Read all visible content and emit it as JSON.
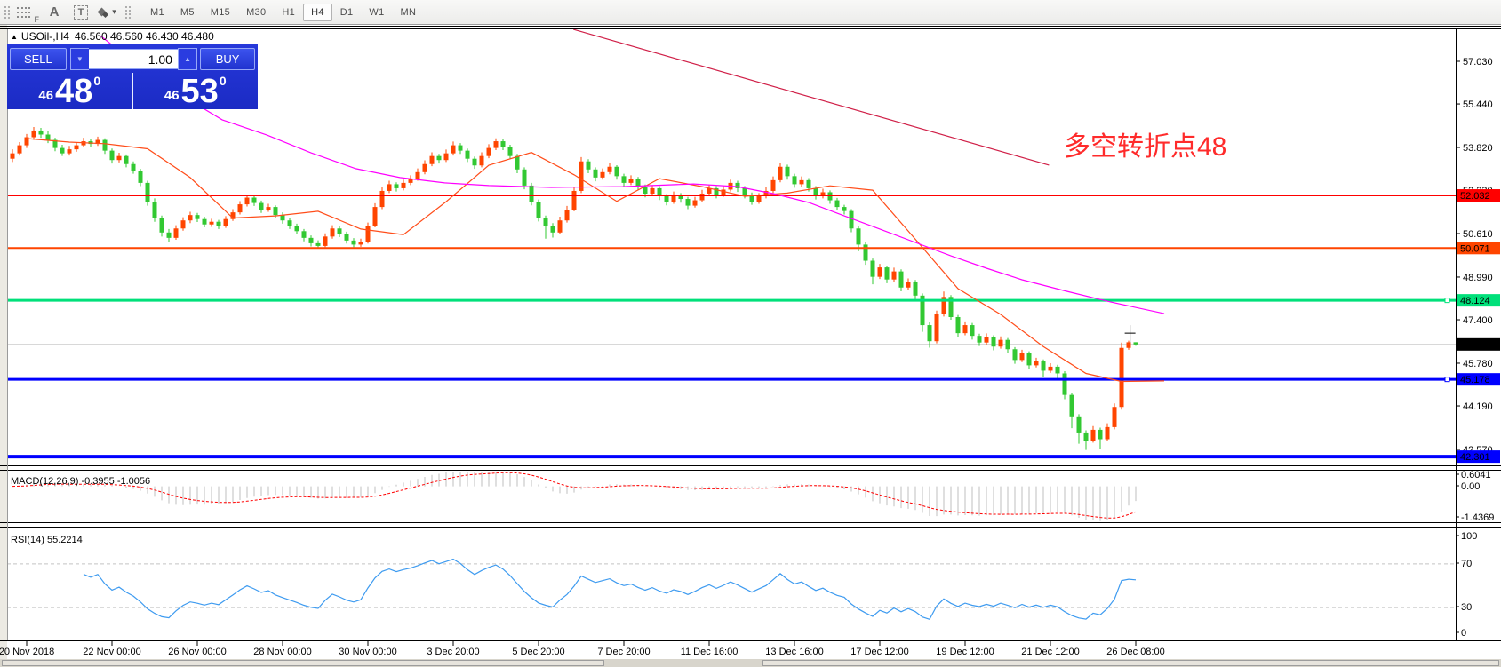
{
  "toolbar": {
    "tools": [
      {
        "name": "fibonacci-tool",
        "glyph": "F"
      },
      {
        "name": "text-tool",
        "glyph": "A"
      },
      {
        "name": "text-label-tool",
        "glyph": "T"
      },
      {
        "name": "arrows-tool",
        "glyph": "▾"
      }
    ],
    "timeframes": [
      "M1",
      "M5",
      "M15",
      "M30",
      "H1",
      "H4",
      "D1",
      "W1",
      "MN"
    ],
    "active_timeframe": "H4"
  },
  "chart_header": {
    "collapse_icon": "▲",
    "symbol_period": "USOil-,H4",
    "ohlc_text": "46.560 46.560 46.430 46.480"
  },
  "trade_panel": {
    "s ell_label": "SELL",
    "sell_label": "SELL",
    "buy_label": "BUY",
    "volume": "1.00",
    "spin_down": "▼",
    "spin_up": "▲",
    "sell_price": {
      "prefix": "46",
      "big": "48",
      "sup": "0"
    },
    "buy_price": {
      "prefix": "46",
      "big": "53",
      "sup": "0"
    }
  },
  "annotation": {
    "text": "多空转折点48",
    "color": "#ff2b2b"
  },
  "indicators": {
    "macd": {
      "label": "MACD(12,26,9)",
      "values_text": "-0.3955 -1.0056",
      "fast": 12,
      "slow": 26,
      "signal": 9,
      "scale_labels": [
        "0.6041",
        "0.00",
        "-1.4369"
      ],
      "histogram_color": "#bfbfbf",
      "signal_color": "#ff0000"
    },
    "rsi": {
      "label": "RSI(14)",
      "value_text": "55.2214",
      "period": 14,
      "scale_labels": [
        "100",
        "70",
        "30",
        "0"
      ],
      "levels": [
        70,
        30
      ],
      "line_color": "#3e9bf0"
    }
  },
  "chart_data": {
    "type": "candlestick",
    "symbol_period": "USOil-,H4",
    "x_labels": [
      "20 Nov 2018",
      "22 Nov 00:00",
      "26 Nov 00:00",
      "28 Nov 00:00",
      "30 Nov 00:00",
      "3 Dec 20:00",
      "5 Dec 20:00",
      "7 Dec 20:00",
      "11 Dec 16:00",
      "13 Dec 16:00",
      "17 Dec 12:00",
      "19 Dec 12:00",
      "21 Dec 12:00",
      "26 Dec 08:00"
    ],
    "price_axis_ticks": [
      "57.030",
      "55.440",
      "53.820",
      "52.230",
      "50.610",
      "48.990",
      "47.400",
      "45.780",
      "44.190",
      "42.570"
    ],
    "current_price": {
      "value": 46.48,
      "label": "46.480"
    },
    "colors": {
      "up": "#ff4500",
      "down": "#32c832"
    },
    "candles": [
      [
        53.4,
        53.75,
        53.28,
        53.6
      ],
      [
        53.6,
        54.02,
        53.52,
        53.9
      ],
      [
        53.9,
        54.32,
        53.8,
        54.2
      ],
      [
        54.2,
        54.58,
        54.1,
        54.45
      ],
      [
        54.45,
        54.55,
        54.18,
        54.3
      ],
      [
        54.3,
        54.42,
        53.98,
        54.1
      ],
      [
        54.1,
        54.18,
        53.68,
        53.8
      ],
      [
        53.8,
        53.92,
        53.5,
        53.6
      ],
      [
        53.6,
        53.88,
        53.52,
        53.75
      ],
      [
        53.75,
        54.02,
        53.66,
        53.9
      ],
      [
        53.9,
        54.18,
        53.82,
        54.05
      ],
      [
        54.05,
        54.15,
        53.85,
        53.95
      ],
      [
        53.95,
        54.22,
        53.88,
        54.1
      ],
      [
        54.1,
        54.16,
        53.58,
        53.7
      ],
      [
        53.7,
        53.78,
        53.22,
        53.35
      ],
      [
        53.35,
        53.62,
        53.26,
        53.5
      ],
      [
        53.5,
        53.56,
        53.08,
        53.2
      ],
      [
        53.2,
        53.3,
        52.84,
        52.95
      ],
      [
        52.95,
        53.02,
        52.38,
        52.5
      ],
      [
        52.5,
        52.58,
        51.65,
        51.8
      ],
      [
        51.8,
        51.92,
        51.05,
        51.2
      ],
      [
        51.2,
        51.28,
        50.5,
        50.65
      ],
      [
        50.65,
        50.78,
        50.3,
        50.45
      ],
      [
        50.45,
        50.92,
        50.38,
        50.8
      ],
      [
        50.8,
        51.22,
        50.72,
        51.1
      ],
      [
        51.1,
        51.42,
        51.0,
        51.3
      ],
      [
        51.3,
        51.38,
        51.04,
        51.15
      ],
      [
        51.15,
        51.24,
        50.84,
        50.95
      ],
      [
        50.95,
        51.16,
        50.86,
        51.05
      ],
      [
        51.05,
        51.12,
        50.78,
        50.9
      ],
      [
        50.9,
        51.26,
        50.82,
        51.15
      ],
      [
        51.15,
        51.52,
        51.08,
        51.4
      ],
      [
        51.4,
        51.82,
        51.32,
        51.7
      ],
      [
        51.7,
        52.06,
        51.62,
        51.95
      ],
      [
        51.95,
        52.02,
        51.64,
        51.75
      ],
      [
        51.75,
        51.84,
        51.38,
        51.5
      ],
      [
        51.5,
        51.72,
        51.42,
        51.6
      ],
      [
        51.6,
        51.66,
        51.18,
        51.3
      ],
      [
        51.3,
        51.4,
        50.98,
        51.1
      ],
      [
        51.1,
        51.18,
        50.78,
        50.9
      ],
      [
        50.9,
        50.98,
        50.58,
        50.7
      ],
      [
        50.7,
        50.78,
        50.32,
        50.45
      ],
      [
        50.45,
        50.54,
        50.13,
        50.25
      ],
      [
        50.25,
        50.36,
        50.08,
        50.15
      ],
      [
        50.15,
        50.62,
        50.1,
        50.5
      ],
      [
        50.5,
        50.92,
        50.42,
        50.8
      ],
      [
        50.8,
        50.88,
        50.48,
        50.6
      ],
      [
        50.6,
        50.68,
        50.24,
        50.35
      ],
      [
        50.35,
        50.44,
        50.1,
        50.2
      ],
      [
        50.2,
        50.42,
        50.12,
        50.3
      ],
      [
        50.3,
        51.02,
        50.24,
        50.9
      ],
      [
        50.9,
        51.74,
        50.84,
        51.6
      ],
      [
        51.6,
        52.34,
        51.52,
        52.2
      ],
      [
        52.2,
        52.58,
        52.12,
        52.45
      ],
      [
        52.45,
        52.52,
        52.18,
        52.3
      ],
      [
        52.3,
        52.62,
        52.22,
        52.5
      ],
      [
        52.5,
        52.78,
        52.42,
        52.65
      ],
      [
        52.65,
        53.04,
        52.58,
        52.9
      ],
      [
        52.9,
        53.34,
        52.82,
        53.2
      ],
      [
        53.2,
        53.64,
        53.12,
        53.5
      ],
      [
        53.5,
        53.58,
        53.22,
        53.35
      ],
      [
        53.35,
        53.74,
        53.28,
        53.6
      ],
      [
        53.6,
        54.04,
        53.52,
        53.9
      ],
      [
        53.9,
        53.98,
        53.58,
        53.7
      ],
      [
        53.7,
        53.78,
        53.28,
        53.4
      ],
      [
        53.4,
        53.48,
        53.02,
        53.15
      ],
      [
        53.15,
        53.64,
        53.08,
        53.5
      ],
      [
        53.5,
        53.94,
        53.42,
        53.8
      ],
      [
        53.8,
        54.16,
        53.72,
        54.05
      ],
      [
        54.05,
        54.12,
        53.72,
        53.85
      ],
      [
        53.85,
        53.92,
        53.38,
        53.5
      ],
      [
        53.5,
        53.58,
        52.86,
        53.0
      ],
      [
        53.0,
        53.08,
        52.26,
        52.4
      ],
      [
        52.4,
        52.5,
        51.66,
        51.8
      ],
      [
        51.8,
        51.88,
        51.06,
        51.2
      ],
      [
        51.2,
        51.28,
        50.42,
        50.9
      ],
      [
        50.9,
        51.0,
        50.46,
        50.65
      ],
      [
        50.65,
        51.24,
        50.58,
        51.1
      ],
      [
        51.1,
        51.64,
        51.02,
        51.5
      ],
      [
        51.5,
        52.36,
        51.44,
        52.2
      ],
      [
        52.2,
        53.46,
        52.12,
        53.3
      ],
      [
        53.3,
        53.38,
        52.86,
        53.0
      ],
      [
        53.0,
        53.08,
        52.56,
        52.7
      ],
      [
        52.7,
        53.04,
        52.62,
        52.9
      ],
      [
        52.9,
        53.24,
        52.82,
        53.1
      ],
      [
        53.1,
        53.16,
        52.62,
        52.75
      ],
      [
        52.75,
        52.84,
        52.36,
        52.5
      ],
      [
        52.5,
        52.78,
        52.42,
        52.65
      ],
      [
        52.65,
        52.72,
        52.22,
        52.35
      ],
      [
        52.35,
        52.44,
        51.96,
        52.1
      ],
      [
        52.1,
        52.42,
        52.02,
        52.3
      ],
      [
        52.3,
        52.38,
        51.86,
        52.0
      ],
      [
        52.0,
        52.08,
        51.66,
        51.8
      ],
      [
        51.8,
        52.18,
        51.72,
        52.05
      ],
      [
        52.05,
        52.12,
        51.76,
        51.9
      ],
      [
        51.9,
        51.98,
        51.52,
        51.65
      ],
      [
        51.65,
        51.98,
        51.58,
        51.85
      ],
      [
        51.85,
        52.24,
        51.78,
        52.1
      ],
      [
        52.1,
        52.42,
        52.02,
        52.3
      ],
      [
        52.3,
        52.38,
        51.92,
        52.05
      ],
      [
        52.05,
        52.38,
        51.98,
        52.25
      ],
      [
        52.25,
        52.62,
        52.18,
        52.5
      ],
      [
        52.5,
        52.58,
        52.16,
        52.3
      ],
      [
        52.3,
        52.38,
        51.92,
        52.05
      ],
      [
        52.05,
        52.14,
        51.68,
        51.8
      ],
      [
        51.8,
        52.12,
        51.72,
        52.0
      ],
      [
        52.0,
        52.34,
        51.92,
        52.2
      ],
      [
        52.2,
        52.74,
        52.12,
        52.6
      ],
      [
        52.6,
        53.25,
        52.52,
        53.1
      ],
      [
        53.1,
        53.18,
        52.62,
        52.75
      ],
      [
        52.75,
        52.84,
        52.32,
        52.45
      ],
      [
        52.45,
        52.74,
        52.36,
        52.6
      ],
      [
        52.6,
        52.68,
        52.18,
        52.3
      ],
      [
        52.3,
        52.38,
        51.88,
        52.0
      ],
      [
        52.0,
        52.28,
        51.92,
        52.15
      ],
      [
        52.15,
        52.22,
        51.72,
        51.85
      ],
      [
        51.85,
        51.94,
        51.48,
        51.6
      ],
      [
        51.6,
        51.68,
        51.32,
        51.45
      ],
      [
        51.45,
        51.52,
        50.66,
        50.8
      ],
      [
        50.8,
        50.88,
        49.95,
        50.2
      ],
      [
        50.2,
        50.3,
        49.45,
        49.6
      ],
      [
        49.6,
        49.68,
        48.72,
        49.0
      ],
      [
        49.0,
        49.48,
        48.92,
        49.35
      ],
      [
        49.35,
        49.42,
        48.76,
        48.9
      ],
      [
        48.9,
        49.34,
        48.82,
        49.2
      ],
      [
        49.2,
        49.28,
        48.46,
        48.6
      ],
      [
        48.6,
        48.94,
        48.52,
        48.8
      ],
      [
        48.8,
        48.88,
        48.16,
        48.3
      ],
      [
        48.3,
        48.38,
        46.95,
        47.2
      ],
      [
        47.2,
        47.3,
        46.36,
        46.6
      ],
      [
        46.6,
        47.74,
        46.52,
        47.6
      ],
      [
        47.6,
        48.45,
        47.52,
        48.25
      ],
      [
        48.25,
        48.32,
        47.4,
        47.5
      ],
      [
        47.5,
        47.58,
        46.76,
        46.9
      ],
      [
        46.9,
        47.34,
        46.82,
        47.2
      ],
      [
        47.2,
        47.28,
        46.66,
        46.8
      ],
      [
        46.8,
        46.88,
        46.42,
        46.55
      ],
      [
        46.55,
        46.89,
        46.47,
        46.75
      ],
      [
        46.75,
        46.82,
        46.26,
        46.4
      ],
      [
        46.4,
        46.78,
        46.32,
        46.65
      ],
      [
        46.65,
        46.72,
        46.16,
        46.3
      ],
      [
        46.3,
        46.38,
        45.76,
        45.9
      ],
      [
        45.9,
        46.28,
        45.82,
        46.15
      ],
      [
        46.15,
        46.22,
        45.56,
        45.7
      ],
      [
        45.7,
        45.98,
        45.62,
        45.85
      ],
      [
        45.85,
        45.92,
        45.26,
        45.5
      ],
      [
        45.5,
        45.78,
        45.42,
        45.65
      ],
      [
        45.65,
        45.72,
        45.21,
        45.4
      ],
      [
        45.4,
        45.48,
        44.44,
        44.6
      ],
      [
        44.6,
        44.68,
        43.36,
        43.8
      ],
      [
        43.8,
        43.88,
        42.78,
        43.2
      ],
      [
        43.2,
        43.28,
        42.55,
        42.9
      ],
      [
        42.9,
        43.44,
        42.82,
        43.3
      ],
      [
        43.3,
        43.38,
        42.58,
        42.95
      ],
      [
        42.95,
        43.54,
        42.88,
        43.4
      ],
      [
        43.4,
        44.28,
        43.32,
        44.15
      ],
      [
        44.15,
        46.55,
        44.05,
        46.35
      ],
      [
        46.35,
        46.62,
        46.28,
        46.56
      ],
      [
        46.56,
        46.56,
        46.43,
        46.48
      ]
    ],
    "horizontal_lines": [
      {
        "price": 52.032,
        "label": "52.032",
        "color": "#ff0000",
        "width": 2
      },
      {
        "price": 50.071,
        "label": "50.071",
        "color": "#ff4500",
        "width": 2
      },
      {
        "price": 48.124,
        "label": "48.124",
        "color": "#00e07a",
        "width": 3,
        "handles": true
      },
      {
        "price": 45.178,
        "label": "45.178",
        "color": "#0000ff",
        "width": 3,
        "handles": true
      },
      {
        "price": 42.301,
        "label": "42.301",
        "color": "#0000ff",
        "width": 4
      }
    ],
    "trendline": {
      "from": {
        "index": 78.9,
        "price": 58.22
      },
      "to": {
        "index": 145.8,
        "price": 53.16
      },
      "color": "#d02048"
    },
    "moving_averages": [
      {
        "name": "fast-ma",
        "color": "#ff4d1a",
        "points": [
          [
            2,
            54.15
          ],
          [
            8,
            54.02
          ],
          [
            13,
            53.96
          ],
          [
            19,
            53.77
          ],
          [
            25,
            52.7
          ],
          [
            31,
            51.19
          ],
          [
            37,
            51.27
          ],
          [
            43,
            51.44
          ],
          [
            49,
            50.78
          ],
          [
            55,
            50.57
          ],
          [
            61,
            51.8
          ],
          [
            67,
            53.16
          ],
          [
            73,
            53.63
          ],
          [
            79,
            52.8
          ],
          [
            85,
            51.81
          ],
          [
            91,
            52.66
          ],
          [
            97,
            52.36
          ],
          [
            103,
            52.0
          ],
          [
            109,
            52.12
          ],
          [
            115,
            52.39
          ],
          [
            121,
            52.23
          ],
          [
            127,
            50.4
          ],
          [
            133,
            48.56
          ],
          [
            139,
            47.6
          ],
          [
            145,
            46.4
          ],
          [
            151,
            45.4
          ],
          [
            156,
            45.1
          ],
          [
            162,
            45.12
          ]
        ]
      },
      {
        "name": "slow-ma",
        "color": "#ff00ff",
        "points": [
          [
            12.4,
            57.98
          ],
          [
            17,
            57.0
          ],
          [
            23.3,
            55.84
          ],
          [
            29.5,
            54.85
          ],
          [
            35.8,
            54.28
          ],
          [
            42,
            53.62
          ],
          [
            48.3,
            53.03
          ],
          [
            54.5,
            52.7
          ],
          [
            60.8,
            52.5
          ],
          [
            67,
            52.4
          ],
          [
            75.8,
            52.33
          ],
          [
            85.8,
            52.36
          ],
          [
            95.8,
            52.46
          ],
          [
            102,
            52.36
          ],
          [
            107,
            52.1
          ],
          [
            112,
            51.77
          ],
          [
            117,
            51.27
          ],
          [
            122,
            50.78
          ],
          [
            127,
            50.28
          ],
          [
            132,
            49.78
          ],
          [
            137,
            49.32
          ],
          [
            142,
            48.89
          ],
          [
            148.3,
            48.46
          ],
          [
            154.5,
            48.06
          ],
          [
            162,
            47.63
          ]
        ]
      }
    ],
    "marker": {
      "index": 157.2,
      "price": 46.9
    }
  }
}
